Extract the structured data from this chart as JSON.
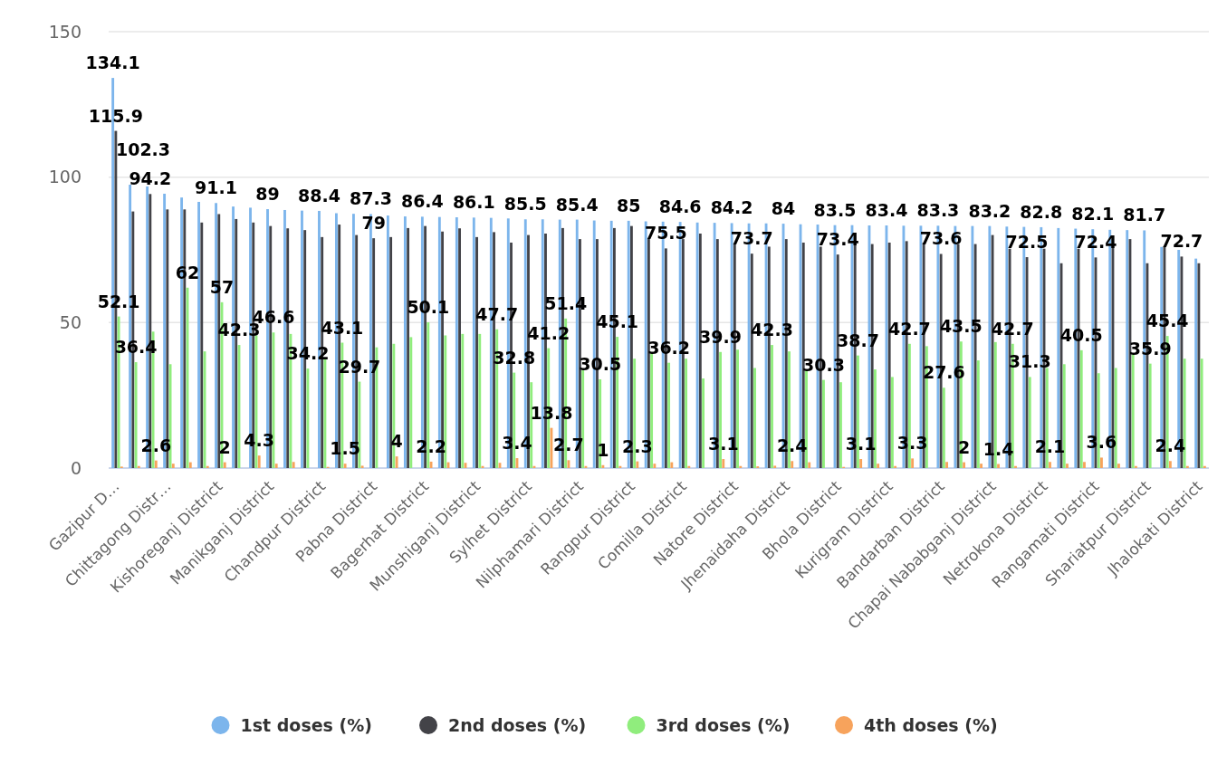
{
  "chart_data": {
    "type": "bar",
    "categories": [
      "Gazipur D…",
      null,
      null,
      "Chittagong Distr…",
      null,
      null,
      "Kishoreganj District",
      null,
      null,
      "Manikganj District",
      null,
      null,
      "Chandpur District",
      null,
      null,
      "Pabna District",
      null,
      null,
      "Bagerhat District",
      null,
      null,
      "Munshiganj District",
      null,
      null,
      "Sylhet District",
      null,
      null,
      "Nilphamari District",
      null,
      null,
      "Rangpur District",
      null,
      null,
      "Comilla District",
      null,
      null,
      "Natore District",
      null,
      null,
      "Jhenaidaha District",
      null,
      null,
      "Bhola District",
      null,
      null,
      "Kurigram District",
      null,
      null,
      "Bandarban District",
      null,
      null,
      "Chapai Nababganj District",
      null,
      null,
      "Netrokona District",
      null,
      null,
      "Rangamati District",
      null,
      null,
      "Shariatpur District",
      null,
      null,
      "Jhalokati District"
    ],
    "series": [
      {
        "name": "1st doses (%)",
        "color": "#7cb5ec",
        "values": [
          134.1,
          97.4,
          96.8,
          94.3,
          93.0,
          91.5,
          91.1,
          89.9,
          89.5,
          89,
          88.7,
          88.5,
          88.4,
          87.6,
          87.4,
          87.3,
          86.8,
          86.5,
          86.4,
          86.3,
          86.2,
          86.1,
          86.0,
          85.8,
          85.5,
          85.5,
          85.4,
          85.4,
          85.1,
          85.0,
          85,
          84.8,
          84.7,
          84.6,
          84.4,
          84.3,
          84.2,
          84.1,
          84.1,
          84,
          83.8,
          83.7,
          83.5,
          83.5,
          83.4,
          83.4,
          83.3,
          83.3,
          83.3,
          83.2,
          83.2,
          83.2,
          83.0,
          82.9,
          82.8,
          82.5,
          82.3,
          82.1,
          81.9,
          81.8,
          81.7,
          76,
          75,
          72
        ],
        "value_labels": [
          "134.1",
          null,
          null,
          null,
          null,
          null,
          "91.1",
          null,
          null,
          "89",
          null,
          null,
          "88.4",
          null,
          null,
          "87.3",
          null,
          null,
          "86.4",
          null,
          null,
          "86.1",
          null,
          null,
          "85.5",
          null,
          null,
          "85.4",
          null,
          null,
          "85",
          null,
          null,
          "84.6",
          null,
          null,
          "84.2",
          null,
          null,
          "84",
          null,
          null,
          "83.5",
          null,
          null,
          "83.4",
          null,
          null,
          "83.3",
          null,
          null,
          "83.2",
          null,
          null,
          "82.8",
          null,
          null,
          "82.1",
          null,
          null,
          "81.7",
          null,
          null,
          null
        ]
      },
      {
        "name": "2nd doses (%)",
        "color": "#434348",
        "values": [
          115.9,
          88.2,
          94.2,
          88.9,
          88.9,
          84.4,
          87.3,
          85.6,
          84.4,
          83.2,
          82.4,
          81.8,
          79.4,
          83.7,
          80.1,
          79,
          79.4,
          82.5,
          83.2,
          81.3,
          82.4,
          79.4,
          81.1,
          77.5,
          80.1,
          80.6,
          82.5,
          78.7,
          78.7,
          82.5,
          83.2,
          79,
          75.5,
          78.7,
          80.6,
          78.7,
          77,
          73.7,
          76.1,
          78.7,
          77.5,
          76.1,
          73.4,
          77.5,
          77.0,
          77.5,
          78.0,
          77.5,
          73.6,
          77.0,
          77.0,
          80.1,
          75.4,
          72.5,
          75.4,
          70.4,
          75.4,
          72.4,
          77.0,
          78.7,
          70.4,
          76.1,
          72.7,
          70.4
        ],
        "value_labels": [
          "115.9",
          null,
          "94.2",
          null,
          null,
          null,
          null,
          null,
          null,
          null,
          null,
          null,
          null,
          null,
          null,
          "79",
          null,
          null,
          null,
          null,
          null,
          null,
          null,
          null,
          null,
          null,
          null,
          null,
          null,
          null,
          null,
          null,
          "75.5",
          null,
          null,
          null,
          null,
          "73.7",
          null,
          null,
          null,
          null,
          "73.4",
          null,
          null,
          null,
          null,
          null,
          "73.6",
          null,
          null,
          null,
          null,
          "72.5",
          null,
          null,
          null,
          "72.4",
          null,
          null,
          null,
          null,
          "72.7",
          null
        ]
      },
      {
        "name": "3rd doses (%)",
        "color": "#90ed7d",
        "values": [
          52.1,
          36.4,
          46.9,
          35.7,
          62,
          40.1,
          57,
          42.3,
          45.6,
          46.6,
          46.1,
          34.2,
          37.6,
          43.1,
          29.7,
          41.5,
          42.7,
          45.0,
          50.1,
          45.6,
          46.1,
          46.1,
          47.7,
          32.8,
          29.5,
          41.2,
          51.4,
          33.6,
          30.5,
          45.1,
          37.6,
          39.6,
          36.2,
          37.6,
          30.8,
          39.9,
          40.7,
          34.4,
          42.3,
          40.1,
          33.6,
          30.3,
          29.5,
          38.7,
          33.9,
          31.3,
          42.7,
          41.9,
          27.6,
          43.5,
          37.0,
          43.3,
          42.7,
          31.3,
          34.4,
          35.7,
          40.5,
          32.6,
          34.4,
          39.1,
          35.9,
          45.4,
          37.6,
          37.6
        ],
        "value_labels": [
          "52.1",
          "36.4",
          null,
          null,
          "62",
          null,
          "57",
          "42.3",
          null,
          "46.6",
          null,
          "34.2",
          null,
          "43.1",
          "29.7",
          null,
          null,
          null,
          "50.1",
          null,
          null,
          null,
          "47.7",
          "32.8",
          null,
          "41.2",
          "51.4",
          null,
          "30.5",
          "45.1",
          null,
          null,
          "36.2",
          null,
          null,
          "39.9",
          null,
          null,
          "42.3",
          null,
          null,
          "30.3",
          null,
          "38.7",
          null,
          null,
          "42.7",
          null,
          "27.6",
          "43.5",
          null,
          null,
          "42.7",
          "31.3",
          null,
          null,
          "40.5",
          null,
          null,
          null,
          "35.9",
          "45.4",
          null,
          null
        ]
      },
      {
        "name": "4th doses (%)",
        "color": "#f7a35c",
        "values": [
          0.5,
          0.7,
          2.6,
          1.5,
          2.0,
          0.7,
          2,
          0,
          4.3,
          1.5,
          2.1,
          0,
          0.4,
          1.5,
          0.8,
          0,
          4,
          0,
          2.2,
          2.0,
          1.8,
          0.7,
          1.8,
          3.4,
          0.7,
          13.8,
          2.7,
          0.7,
          1,
          0.7,
          2.3,
          1.5,
          2.0,
          0.7,
          0,
          3.1,
          0.7,
          0.6,
          0.8,
          2.4,
          2.0,
          0,
          0.4,
          3.1,
          1.5,
          0.7,
          3.3,
          0,
          2.1,
          2,
          1.5,
          1.4,
          0.7,
          0,
          2.1,
          1.5,
          2.1,
          3.6,
          1.5,
          0.7,
          0,
          2.4,
          0.7,
          0.7
        ],
        "value_labels": [
          null,
          null,
          "2.6",
          null,
          null,
          null,
          "2",
          null,
          "4.3",
          null,
          null,
          null,
          null,
          "1.5",
          null,
          null,
          "4",
          null,
          "2.2",
          null,
          null,
          null,
          null,
          "3.4",
          null,
          "13.8",
          "2.7",
          null,
          "1",
          null,
          "2.3",
          null,
          null,
          null,
          null,
          "3.1",
          null,
          null,
          null,
          "2.4",
          null,
          null,
          null,
          "3.1",
          null,
          null,
          "3.3",
          null,
          null,
          "2",
          null,
          "1.4",
          null,
          null,
          "2.1",
          null,
          null,
          "3.6",
          null,
          null,
          null,
          "2.4",
          null,
          null
        ]
      }
    ],
    "annotations": [
      "102.3"
    ],
    "ylim": [
      0,
      150
    ],
    "yticks": [
      0,
      50,
      100,
      150
    ],
    "grid": "y",
    "legend": "bottom"
  }
}
